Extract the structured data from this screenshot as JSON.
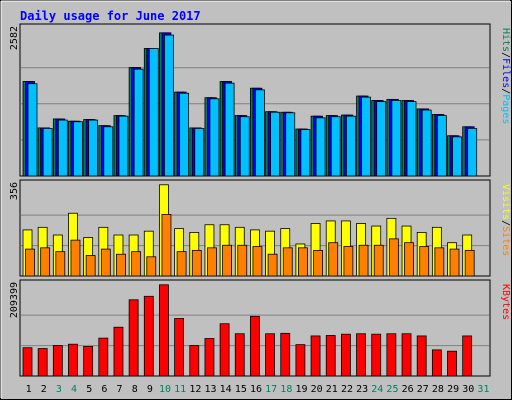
{
  "colors": {
    "background": "#C0C0C0",
    "plot_bg": "#C0C0C0",
    "title": "#0000FF",
    "hits": "#00805C",
    "files": "#0000FF",
    "pages": "#00C0FF",
    "visits": "#FFFF00",
    "sites": "#FF8000",
    "kbytes": "#FF0000",
    "weekday": "#000000",
    "weekend": "#00805C",
    "grid": "#808080",
    "axis_num": "#000000"
  },
  "chart_data": {
    "type": "bar",
    "title": "Daily usage for June 2017",
    "days": [
      "1",
      "2",
      "3",
      "4",
      "5",
      "6",
      "7",
      "8",
      "9",
      "10",
      "11",
      "12",
      "13",
      "14",
      "15",
      "16",
      "17",
      "18",
      "19",
      "20",
      "21",
      "22",
      "23",
      "24",
      "25",
      "26",
      "27",
      "28",
      "29",
      "30",
      "31"
    ],
    "weekend_days": [
      "3",
      "4",
      "10",
      "11",
      "17",
      "18",
      "24",
      "25",
      "31"
    ],
    "panels": [
      {
        "name": "hits-files-pages",
        "ymax_label": "2582",
        "ymax": 2582,
        "legend": [
          "Pages",
          "/",
          "Files",
          "/",
          "Hits"
        ],
        "series": [
          {
            "name": "Hits",
            "values": [
              1690,
              860,
              1020,
              980,
              1010,
              900,
              1080,
              1940,
              2280,
              2560,
              1500,
              860,
              1400,
              1690,
              1080,
              1570,
              1150,
              1140,
              840,
              1070,
              1080,
              1090,
              1430,
              1350,
              1370,
              1350,
              1200,
              1100,
              720,
              880,
              0
            ]
          },
          {
            "name": "Files",
            "values": [
              1690,
              860,
              1020,
              980,
              1010,
              900,
              1080,
              1940,
              2280,
              2560,
              1500,
              860,
              1400,
              1690,
              1080,
              1570,
              1150,
              1140,
              840,
              1070,
              1080,
              1090,
              1430,
              1350,
              1370,
              1350,
              1200,
              1100,
              720,
              880,
              0
            ]
          },
          {
            "name": "Pages",
            "values": [
              1650,
              850,
              1000,
              970,
              1000,
              880,
              1070,
              1910,
              2280,
              2520,
              1480,
              850,
              1380,
              1660,
              1060,
              1540,
              1140,
              1130,
              830,
              1040,
              1060,
              1070,
              1410,
              1330,
              1350,
              1330,
              1180,
              1080,
              700,
              850,
              0
            ]
          }
        ]
      },
      {
        "name": "visits-sites",
        "ymax_label": "356",
        "ymax": 356,
        "legend": [
          "Sites",
          "/",
          "Visits"
        ],
        "series": [
          {
            "name": "Visits",
            "values": [
              180,
              190,
              160,
              245,
              150,
              190,
              160,
              160,
              175,
              356,
              185,
              170,
              200,
              200,
              190,
              180,
              175,
              185,
              125,
              205,
              215,
              215,
              205,
              195,
              225,
              195,
              170,
              190,
              130,
              160,
              0
            ]
          },
          {
            "name": "Sites",
            "values": [
              105,
              110,
              95,
              140,
              80,
              105,
              85,
              95,
              75,
              240,
              95,
              100,
              110,
              120,
              120,
              115,
              85,
              110,
              110,
              100,
              130,
              115,
              120,
              120,
              145,
              130,
              115,
              110,
              105,
              100,
              0
            ]
          }
        ]
      },
      {
        "name": "kbytes",
        "ymax_label": "209399",
        "ymax": 209399,
        "legend": [
          "KBytes"
        ],
        "series": [
          {
            "name": "KBytes",
            "values": [
              65000,
              63000,
              70000,
              73000,
              68000,
              87000,
              112000,
              175000,
              183000,
              209399,
              132000,
              70000,
              86000,
              120000,
              97000,
              137000,
              97000,
              98000,
              72000,
              92000,
              93000,
              96000,
              97000,
              96000,
              97000,
              97000,
              92000,
              60000,
              57000,
              92000,
              0
            ]
          }
        ]
      }
    ]
  }
}
